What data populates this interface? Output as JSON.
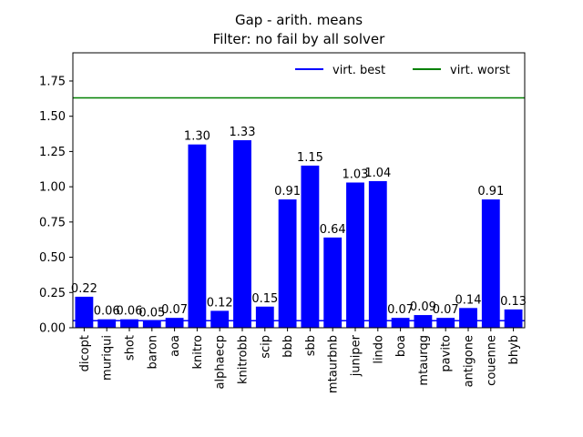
{
  "chart_data": {
    "type": "bar",
    "title": "Gap - arith. means",
    "subtitle": "Filter: no fail by all solver",
    "xlabel": "",
    "ylabel": "",
    "ylim": [
      0,
      1.95
    ],
    "yticks": [
      "0.00",
      "0.25",
      "0.50",
      "0.75",
      "1.00",
      "1.25",
      "1.50",
      "1.75"
    ],
    "bar_color": "#0000ff",
    "categories": [
      "dicopt",
      "muriqui",
      "shot",
      "baron",
      "aoa",
      "knitro",
      "alphaecp",
      "knitrobb",
      "scip",
      "bbb",
      "sbb",
      "mtaurbnb",
      "juniper",
      "lindo",
      "boa",
      "mtaurqg",
      "pavito",
      "antigone",
      "couenne",
      "bhyb"
    ],
    "values": [
      0.22,
      0.06,
      0.06,
      0.05,
      0.07,
      1.3,
      0.12,
      1.33,
      0.15,
      0.91,
      1.15,
      0.64,
      1.03,
      1.04,
      0.07,
      0.09,
      0.07,
      0.14,
      0.91,
      0.13
    ],
    "value_labels": [
      "0.22",
      "0.06",
      "0.06",
      "0.05",
      "0.07",
      "1.30",
      "0.12",
      "1.33",
      "0.15",
      "0.91",
      "1.15",
      "0.64",
      "1.03",
      "1.04",
      "0.07",
      "0.09",
      "0.07",
      "0.14",
      "0.91",
      "0.13"
    ],
    "reference_lines": [
      {
        "name": "virt. best",
        "value": 0.05,
        "color": "#0000ff"
      },
      {
        "name": "virt. worst",
        "value": 1.63,
        "color": "#008000"
      }
    ],
    "legend_placement": "top-right",
    "grid": false
  }
}
